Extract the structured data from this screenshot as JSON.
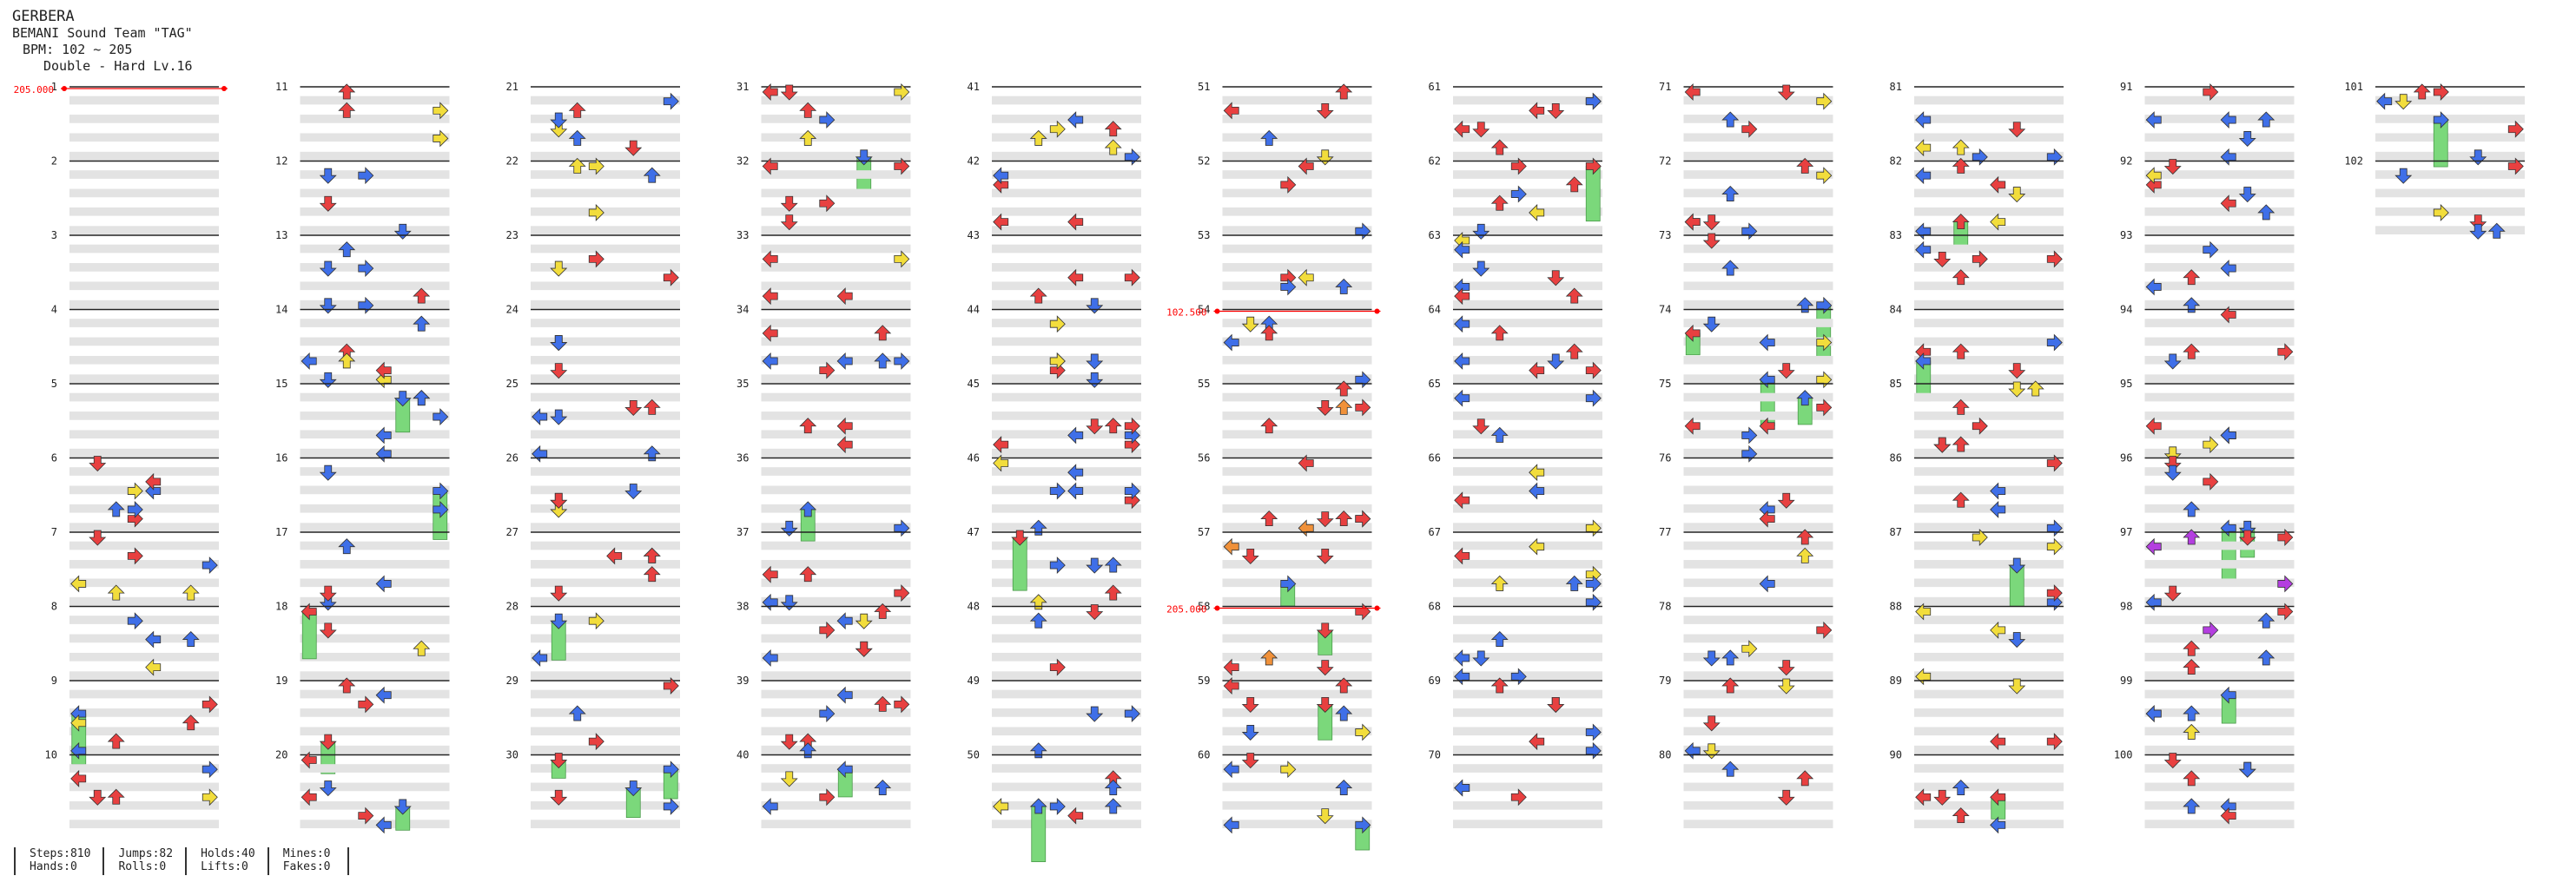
{
  "header": {
    "title": "GERBERA",
    "artist": "BEMANI Sound Team \"TAG\"",
    "bpm": "BPM: 102 ~ 205",
    "difficulty": "Double - Hard Lv.16"
  },
  "stats": {
    "steps": "Steps:810",
    "jumps": "Jumps:82",
    "holds": "Holds:40",
    "mines": "Mines:0",
    "hands": "Hands:0",
    "rolls": "Rolls:0",
    "lifts": "Lifts:0",
    "fakes": "Fakes:0"
  },
  "colors": {
    "quarter": "#e84040",
    "eighth": "#3f6fe8",
    "sixteenth": "#f2dd3c",
    "twelfth": "#b43ee0",
    "orange": "#f0913a",
    "hold": "#7bd87b",
    "shade": "#e3e3e3",
    "line": "#222222",
    "bpm": "#ff0000"
  },
  "chart_data": {
    "type": "table",
    "measures_total": 102,
    "measures_per_column": 10,
    "bpm_changes": [
      {
        "measure": 1,
        "label": "205.000"
      },
      {
        "measure": 54,
        "label": "102.500"
      },
      {
        "measure": 58,
        "label": "205.000"
      }
    ],
    "measure_labels": [
      "1",
      "2",
      "3",
      "4",
      "5",
      "6",
      "7",
      "8",
      "9",
      "10",
      "11",
      "12",
      "13",
      "14",
      "15",
      "16",
      "17",
      "18",
      "19",
      "20",
      "21",
      "22",
      "23",
      "24",
      "25",
      "26",
      "27",
      "28",
      "29",
      "30",
      "31",
      "32",
      "33",
      "34",
      "35",
      "36",
      "37",
      "38",
      "39",
      "40",
      "41",
      "42",
      "43",
      "44",
      "45",
      "46",
      "47",
      "48",
      "49",
      "50",
      "51",
      "52",
      "53",
      "54",
      "55",
      "56",
      "57",
      "58",
      "59",
      "60",
      "61",
      "62",
      "63",
      "64",
      "65",
      "66",
      "67",
      "68",
      "69",
      "70",
      "71",
      "72",
      "73",
      "74",
      "75",
      "76",
      "77",
      "78",
      "79",
      "80",
      "81",
      "82",
      "83",
      "84",
      "85",
      "86",
      "87",
      "88",
      "89",
      "90",
      "91",
      "92",
      "93",
      "94",
      "95",
      "96",
      "97",
      "98",
      "99",
      "100",
      "101",
      "102"
    ]
  }
}
